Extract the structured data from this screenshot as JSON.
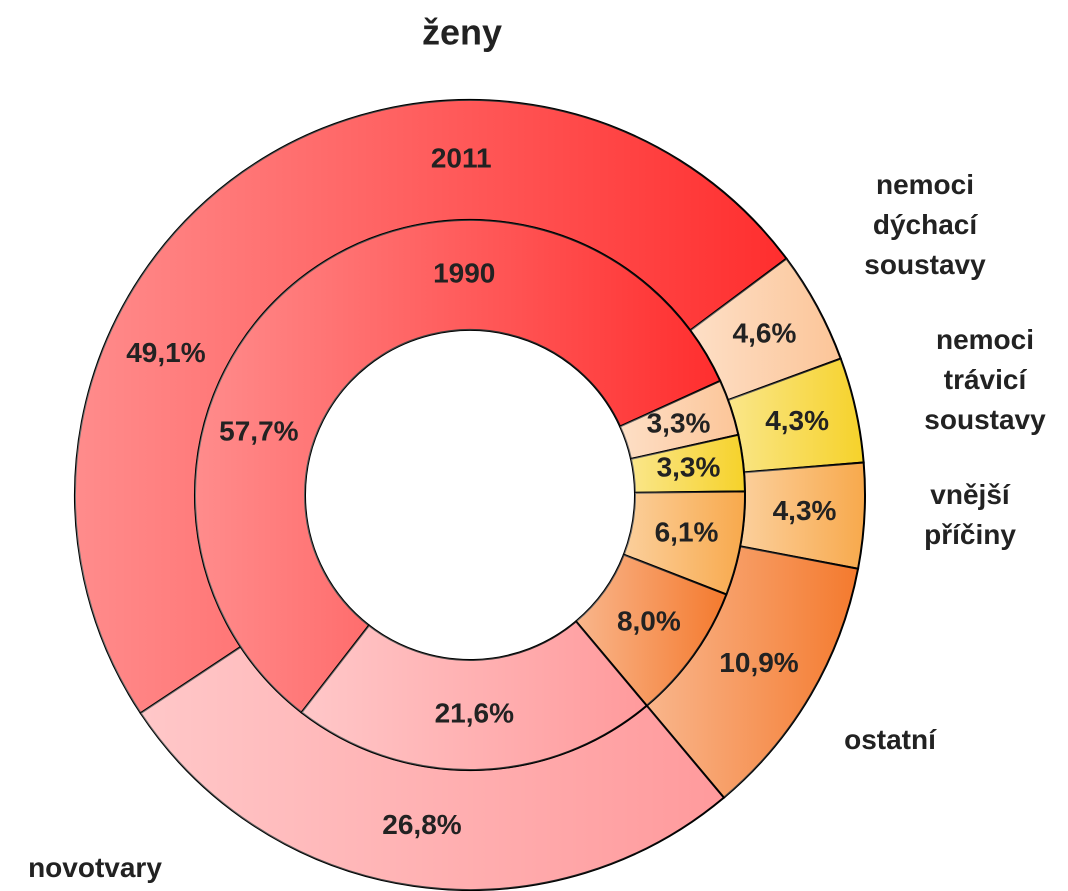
{
  "chart_data": {
    "type": "double-donut",
    "title": "ženy",
    "categories": [
      null,
      "nemoci dýchací soustavy",
      "nemoci trávicí soustavy",
      "vnější příčiny",
      "ostatní",
      "novotvary"
    ],
    "colors": [
      "#ff2e2e",
      "#fcc598",
      "#f6d22a",
      "#f8a94c",
      "#f47a2e",
      "#ff9a9c"
    ],
    "series": [
      {
        "name": "2011",
        "values": [
          49.1,
          4.6,
          4.3,
          4.3,
          10.9,
          26.8
        ],
        "value_labels": [
          "49,1%",
          "4,6%",
          "4,3%",
          "4,3%",
          "10,9%",
          "26,8%"
        ]
      },
      {
        "name": "1990",
        "values": [
          57.7,
          3.3,
          3.3,
          6.1,
          8.0,
          21.6
        ],
        "value_labels": [
          "57,7%",
          "3,3%",
          "3,3%",
          "6,1%",
          "8,0%",
          "21,6%"
        ]
      }
    ]
  }
}
